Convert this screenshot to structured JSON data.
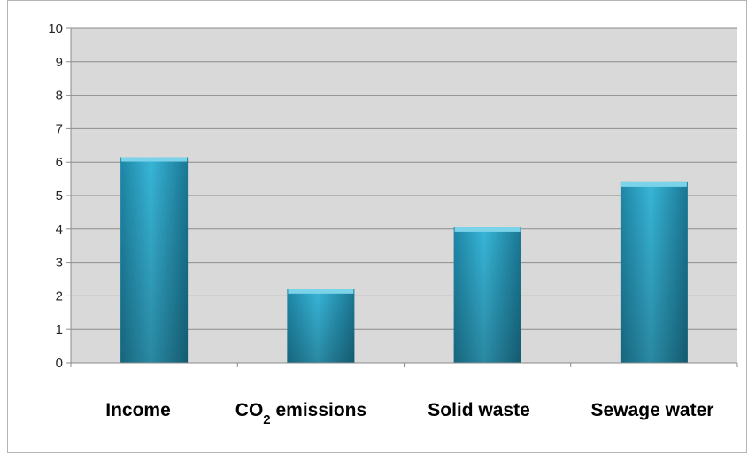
{
  "chart_data": {
    "type": "bar",
    "categories": [
      "Income",
      "CO2 emissions",
      "Solid waste",
      "Sewage water"
    ],
    "values": [
      6.15,
      2.2,
      4.05,
      5.4
    ],
    "y_ticks": [
      "0",
      "1",
      "2",
      "3",
      "4",
      "5",
      "6",
      "7",
      "8",
      "9",
      "10"
    ],
    "ylim": [
      0,
      10
    ],
    "grid": true,
    "title": "",
    "xlabel": "",
    "ylabel": "",
    "legend": "none"
  },
  "colors": {
    "plot_background": "#d9d9d9",
    "gridline": "#8c8c8c",
    "bar": "#2fa7c9",
    "bar_dark": "#1a7895",
    "bar_light": "#7bd3ea"
  }
}
